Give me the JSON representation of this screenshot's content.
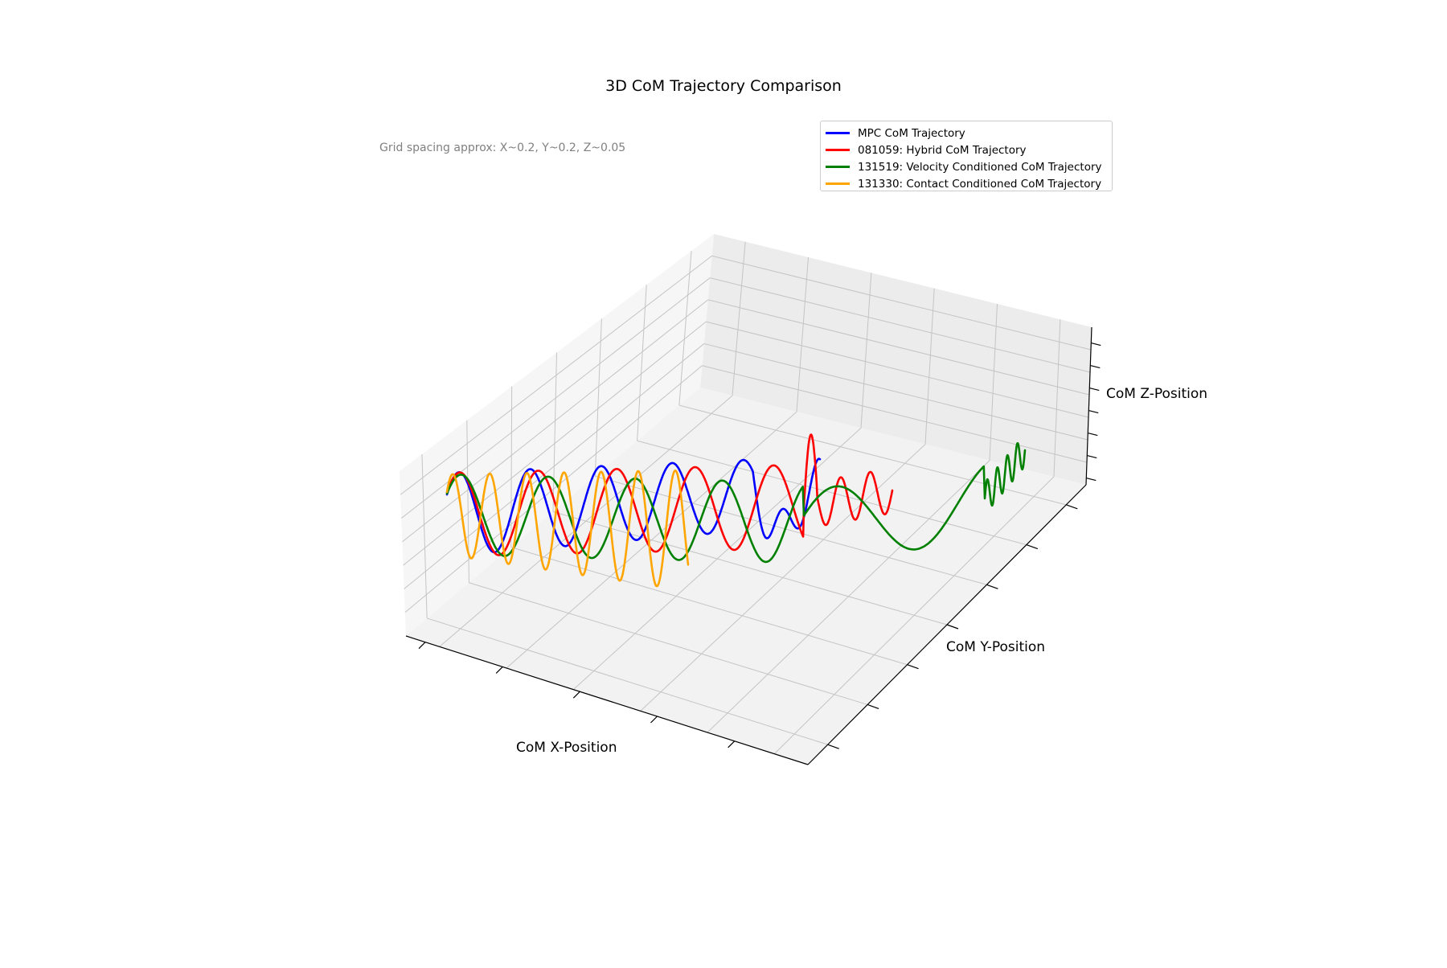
{
  "chart_data": {
    "type": "line",
    "title": "3D CoM Trajectory Comparison",
    "annotation": "Grid spacing approx: X~0.2, Y~0.2, Z~0.05",
    "xlabel": "CoM X-Position",
    "ylabel": "CoM Y-Position",
    "zlabel": "CoM Z-Position",
    "projection": "3d",
    "grid": true,
    "legend_position": "top-right",
    "tick_labels_shown": false,
    "series": [
      {
        "name": "MPC CoM Trajectory",
        "color": "#0000ff"
      },
      {
        "name": "081059: Hybrid CoM Trajectory",
        "color": "#ff0000"
      },
      {
        "name": "131519: Velocity Conditioned CoM Trajectory",
        "color": "#008000"
      },
      {
        "name": "131330: Contact Conditioned CoM Trajectory",
        "color": "#ffa500"
      }
    ]
  }
}
